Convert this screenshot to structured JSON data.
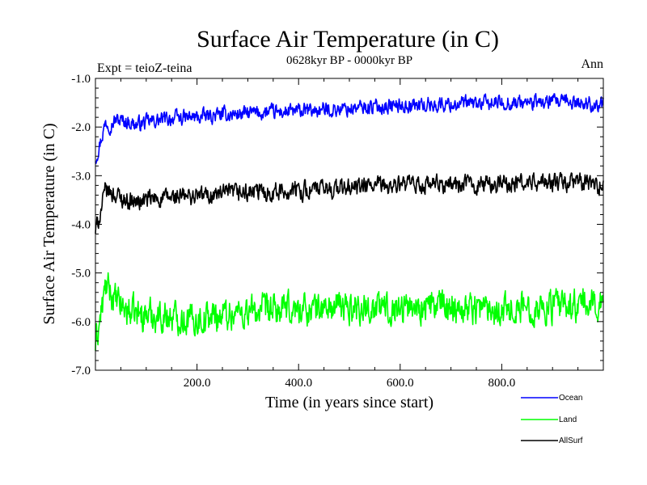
{
  "chart_data": {
    "type": "line",
    "title": "Surface Air Temperature (in C)",
    "subtitle": "0628kyr BP - 0000kyr BP",
    "expt_label": "Expt = teioZ-teina",
    "season_label": "Ann",
    "xlabel": "Time (in years since start)",
    "ylabel": "Surface Air Temperature (in C)",
    "xlim": [
      0,
      1000
    ],
    "ylim": [
      -7.0,
      -1.0
    ],
    "xticks": [
      200,
      400,
      600,
      800
    ],
    "xtick_labels": [
      "200.0",
      "400.0",
      "600.0",
      "800.0"
    ],
    "yticks": [
      -1.0,
      -2.0,
      -3.0,
      -4.0,
      -5.0,
      -6.0,
      -7.0
    ],
    "ytick_labels": [
      "-1.0",
      "-2.0",
      "-3.0",
      "-4.0",
      "-5.0",
      "-6.0",
      "-7.0"
    ],
    "grid": false,
    "legend_position": "bottom-right",
    "series": [
      {
        "name": "Ocean",
        "color": "#0000ff",
        "x": [
          0,
          10,
          20,
          30,
          40,
          60,
          80,
          100,
          150,
          200,
          250,
          300,
          350,
          400,
          450,
          500,
          550,
          600,
          650,
          700,
          750,
          800,
          850,
          900,
          950,
          1000
        ],
        "values": [
          -2.65,
          -2.3,
          -1.9,
          -1.95,
          -1.85,
          -1.88,
          -1.95,
          -1.9,
          -1.82,
          -1.8,
          -1.75,
          -1.72,
          -1.7,
          -1.68,
          -1.65,
          -1.62,
          -1.58,
          -1.56,
          -1.55,
          -1.53,
          -1.52,
          -1.5,
          -1.5,
          -1.49,
          -1.5,
          -1.55
        ],
        "noise_amplitude": 0.13
      },
      {
        "name": "Land",
        "color": "#00ff00",
        "x": [
          0,
          10,
          20,
          30,
          40,
          60,
          80,
          100,
          150,
          200,
          250,
          300,
          350,
          400,
          450,
          500,
          550,
          600,
          650,
          700,
          750,
          800,
          850,
          900,
          950,
          1000
        ],
        "values": [
          -6.5,
          -5.9,
          -5.3,
          -5.4,
          -5.6,
          -5.75,
          -5.85,
          -5.85,
          -5.9,
          -5.95,
          -5.85,
          -5.8,
          -5.78,
          -5.75,
          -5.72,
          -5.7,
          -5.72,
          -5.7,
          -5.68,
          -5.68,
          -5.7,
          -5.72,
          -5.72,
          -5.7,
          -5.68,
          -5.6
        ],
        "noise_amplitude": 0.28
      },
      {
        "name": "AllSurf",
        "color": "#000000",
        "x": [
          0,
          10,
          20,
          30,
          40,
          60,
          80,
          100,
          150,
          200,
          250,
          300,
          350,
          400,
          450,
          500,
          550,
          600,
          650,
          700,
          750,
          800,
          850,
          900,
          950,
          1000
        ],
        "values": [
          -4.15,
          -3.75,
          -3.3,
          -3.35,
          -3.4,
          -3.5,
          -3.55,
          -3.5,
          -3.45,
          -3.42,
          -3.38,
          -3.35,
          -3.33,
          -3.3,
          -3.28,
          -3.25,
          -3.22,
          -3.2,
          -3.2,
          -3.18,
          -3.18,
          -3.17,
          -3.15,
          -3.15,
          -3.14,
          -3.2
        ],
        "noise_amplitude": 0.16
      }
    ]
  }
}
